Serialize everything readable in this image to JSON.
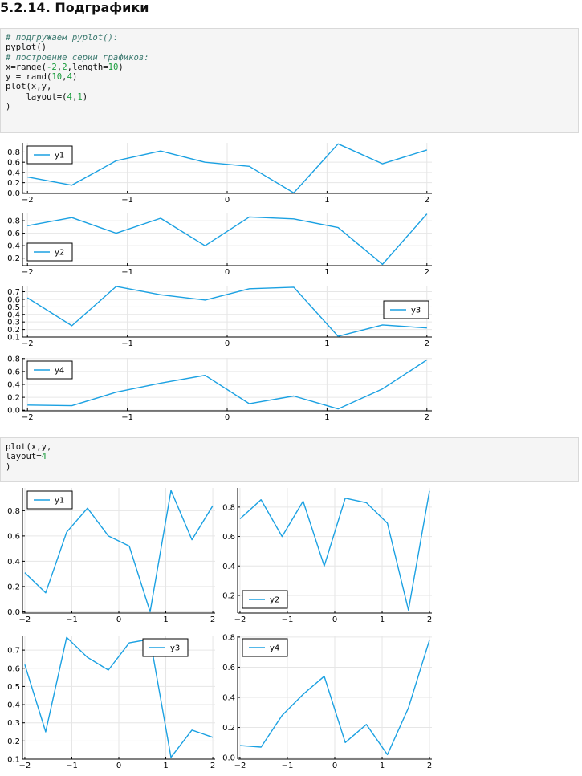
{
  "heading": "5.2.14. Подграфики",
  "code1": [
    [
      {
        "t": "# подгружаем pyplot():",
        "c": "c-com"
      }
    ],
    [
      {
        "t": "pyplot()",
        "c": "c-fn"
      }
    ],
    [
      {
        "t": "# построение серии графиков:",
        "c": "c-com"
      }
    ],
    [
      {
        "t": "x=range(",
        "c": "c-fn"
      },
      {
        "t": "-2",
        "c": "c-num"
      },
      {
        "t": ",",
        "c": "c-fn"
      },
      {
        "t": "2",
        "c": "c-num"
      },
      {
        "t": ",length=",
        "c": "c-fn"
      },
      {
        "t": "10",
        "c": "c-num"
      },
      {
        "t": ")",
        "c": "c-fn"
      }
    ],
    [
      {
        "t": "y = rand(",
        "c": "c-fn"
      },
      {
        "t": "10",
        "c": "c-num"
      },
      {
        "t": ",",
        "c": "c-fn"
      },
      {
        "t": "4",
        "c": "c-num"
      },
      {
        "t": ")",
        "c": "c-fn"
      }
    ],
    [
      {
        "t": "plot(x,y,",
        "c": "c-fn"
      }
    ],
    [
      {
        "t": "    layout=(",
        "c": "c-fn"
      },
      {
        "t": "4",
        "c": "c-num"
      },
      {
        "t": ",",
        "c": "c-fn"
      },
      {
        "t": "1",
        "c": "c-num"
      },
      {
        "t": ")",
        "c": "c-fn"
      }
    ],
    [
      {
        "t": ")",
        "c": "c-fn"
      }
    ]
  ],
  "code2": [
    [
      {
        "t": "plot(x,y,",
        "c": "c-fn"
      }
    ],
    [
      {
        "t": "layout=",
        "c": "c-fn"
      },
      {
        "t": "4",
        "c": "c-num"
      }
    ],
    [
      {
        "t": ")",
        "c": "c-fn"
      }
    ]
  ],
  "colors": {
    "line": "#1ba1e2",
    "axis": "#000000",
    "grid": "#e6e6e6"
  },
  "chart_data": [
    {
      "type": "line",
      "figure": "layout (4,1)",
      "panel": 1,
      "x": [
        -2,
        -1.5556,
        -1.1111,
        -0.6667,
        -0.2222,
        0.2222,
        0.6667,
        1.1111,
        1.5556,
        2
      ],
      "series": [
        {
          "name": "y1",
          "values": [
            0.31,
            0.15,
            0.63,
            0.82,
            0.6,
            0.52,
            0.0,
            0.96,
            0.57,
            0.84
          ]
        }
      ],
      "xticks": [
        "−2",
        "−1",
        "0",
        "1",
        "2"
      ],
      "yticks": [
        "0.0",
        "0.2",
        "0.4",
        "0.6",
        "0.8"
      ],
      "ylim": [
        -0.01,
        0.98
      ],
      "legend": "top-left",
      "grid": true
    },
    {
      "type": "line",
      "figure": "layout (4,1)",
      "panel": 2,
      "x": [
        -2,
        -1.5556,
        -1.1111,
        -0.6667,
        -0.2222,
        0.2222,
        0.6667,
        1.1111,
        1.5556,
        2
      ],
      "series": [
        {
          "name": "y2",
          "values": [
            0.72,
            0.85,
            0.6,
            0.84,
            0.4,
            0.86,
            0.83,
            0.69,
            0.1,
            0.91
          ]
        }
      ],
      "xticks": [
        "−2",
        "−1",
        "0",
        "1",
        "2"
      ],
      "yticks": [
        "0.2",
        "0.4",
        "0.6",
        "0.8"
      ],
      "ylim": [
        0.08,
        0.93
      ],
      "legend": "bottom-left",
      "grid": true
    },
    {
      "type": "line",
      "figure": "layout (4,1)",
      "panel": 3,
      "x": [
        -2,
        -1.5556,
        -1.1111,
        -0.6667,
        -0.2222,
        0.2222,
        0.6667,
        1.1111,
        1.5556,
        2
      ],
      "series": [
        {
          "name": "y3",
          "values": [
            0.62,
            0.25,
            0.77,
            0.66,
            0.59,
            0.74,
            0.76,
            0.11,
            0.26,
            0.22
          ]
        }
      ],
      "xticks": [
        "−2",
        "−1",
        "0",
        "1",
        "2"
      ],
      "yticks": [
        "0.1",
        "0.2",
        "0.3",
        "0.4",
        "0.5",
        "0.6",
        "0.7"
      ],
      "ylim": [
        0.1,
        0.78
      ],
      "legend": "right",
      "grid": true
    },
    {
      "type": "line",
      "figure": "layout (4,1)",
      "panel": 4,
      "x": [
        -2,
        -1.5556,
        -1.1111,
        -0.6667,
        -0.2222,
        0.2222,
        0.6667,
        1.1111,
        1.5556,
        2
      ],
      "series": [
        {
          "name": "y4",
          "values": [
            0.08,
            0.07,
            0.28,
            0.42,
            0.54,
            0.1,
            0.22,
            0.02,
            0.33,
            0.78
          ]
        }
      ],
      "xticks": [
        "−2",
        "−1",
        "0",
        "1",
        "2"
      ],
      "yticks": [
        "0.0",
        "0.2",
        "0.4",
        "0.6",
        "0.8"
      ],
      "ylim": [
        -0.01,
        0.81
      ],
      "legend": "top-left",
      "grid": true
    },
    {
      "type": "line",
      "figure": "layout 4",
      "panel": 1,
      "x": [
        -2,
        -1.5556,
        -1.1111,
        -0.6667,
        -0.2222,
        0.2222,
        0.6667,
        1.1111,
        1.5556,
        2
      ],
      "series": [
        {
          "name": "y1",
          "values": [
            0.31,
            0.15,
            0.63,
            0.82,
            0.6,
            0.52,
            0.0,
            0.96,
            0.57,
            0.84
          ]
        }
      ],
      "xticks": [
        "−2",
        "−1",
        "0",
        "1",
        "2"
      ],
      "yticks": [
        "0.0",
        "0.2",
        "0.4",
        "0.6",
        "0.8"
      ],
      "ylim": [
        -0.01,
        0.98
      ],
      "legend": "top-left",
      "grid": true
    },
    {
      "type": "line",
      "figure": "layout 4",
      "panel": 2,
      "x": [
        -2,
        -1.5556,
        -1.1111,
        -0.6667,
        -0.2222,
        0.2222,
        0.6667,
        1.1111,
        1.5556,
        2
      ],
      "series": [
        {
          "name": "y2",
          "values": [
            0.72,
            0.85,
            0.6,
            0.84,
            0.4,
            0.86,
            0.83,
            0.69,
            0.1,
            0.91
          ]
        }
      ],
      "xticks": [
        "−2",
        "−1",
        "0",
        "1",
        "2"
      ],
      "yticks": [
        "0.2",
        "0.4",
        "0.6",
        "0.8"
      ],
      "ylim": [
        0.08,
        0.93
      ],
      "legend": "bottom-left",
      "grid": true
    },
    {
      "type": "line",
      "figure": "layout 4",
      "panel": 3,
      "x": [
        -2,
        -1.5556,
        -1.1111,
        -0.6667,
        -0.2222,
        0.2222,
        0.6667,
        1.1111,
        1.5556,
        2
      ],
      "series": [
        {
          "name": "y3",
          "values": [
            0.62,
            0.25,
            0.77,
            0.66,
            0.59,
            0.74,
            0.76,
            0.11,
            0.26,
            0.22
          ]
        }
      ],
      "xticks": [
        "−2",
        "−1",
        "0",
        "1",
        "2"
      ],
      "yticks": [
        "0.1",
        "0.2",
        "0.3",
        "0.4",
        "0.5",
        "0.6",
        "0.7"
      ],
      "ylim": [
        0.1,
        0.78
      ],
      "legend": "top-right",
      "grid": true
    },
    {
      "type": "line",
      "figure": "layout 4",
      "panel": 4,
      "x": [
        -2,
        -1.5556,
        -1.1111,
        -0.6667,
        -0.2222,
        0.2222,
        0.6667,
        1.1111,
        1.5556,
        2
      ],
      "series": [
        {
          "name": "y4",
          "values": [
            0.08,
            0.07,
            0.28,
            0.42,
            0.54,
            0.1,
            0.22,
            0.02,
            0.33,
            0.78
          ]
        }
      ],
      "xticks": [
        "−2",
        "−1",
        "0",
        "1",
        "2"
      ],
      "yticks": [
        "0.0",
        "0.2",
        "0.4",
        "0.6",
        "0.8"
      ],
      "ylim": [
        -0.01,
        0.81
      ],
      "legend": "top-left",
      "grid": true
    }
  ]
}
